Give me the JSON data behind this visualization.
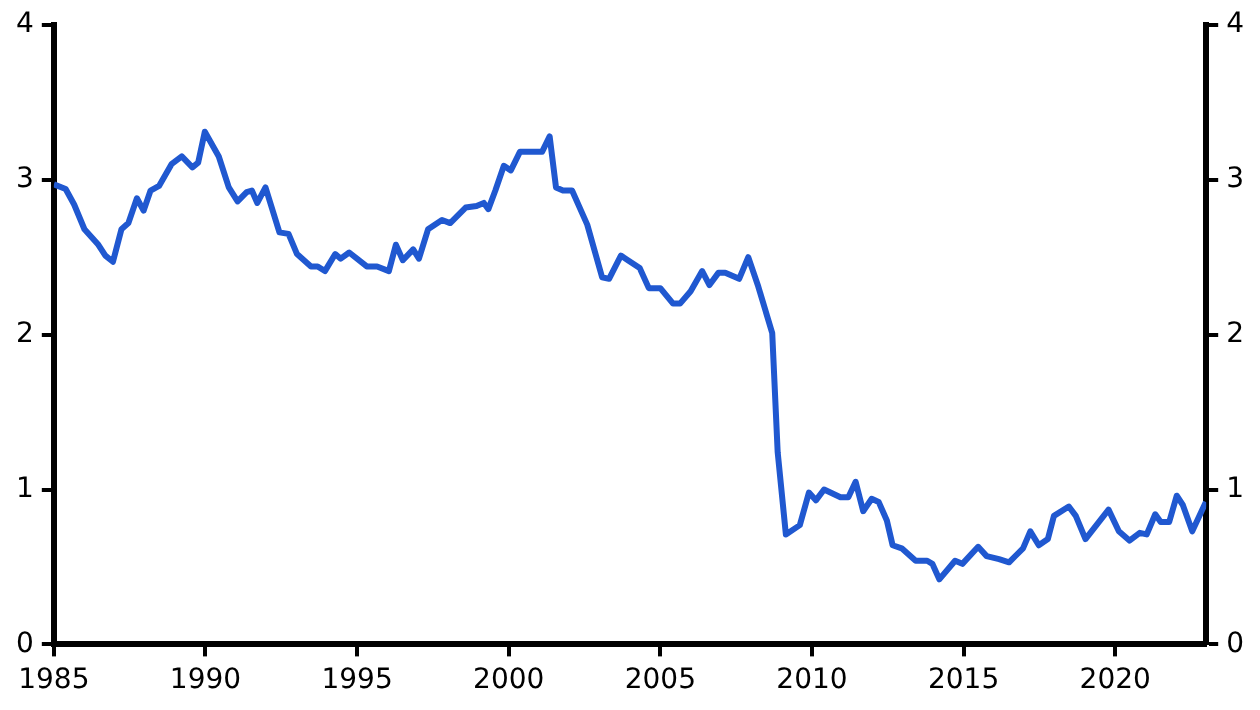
{
  "chart_data": {
    "type": "line",
    "x": [
      1985.0,
      1985.39,
      1985.67,
      1986.01,
      1986.47,
      1986.7,
      1986.95,
      1987.23,
      1987.46,
      1987.74,
      1987.96,
      1988.19,
      1988.47,
      1988.88,
      1989.22,
      1989.57,
      1989.76,
      1989.98,
      1990.44,
      1990.77,
      1991.06,
      1991.36,
      1991.53,
      1991.71,
      1991.98,
      1992.44,
      1992.74,
      1993.02,
      1993.48,
      1993.7,
      1993.94,
      1994.28,
      1994.46,
      1994.74,
      1995.32,
      1995.66,
      1996.05,
      1996.28,
      1996.51,
      1996.85,
      1997.04,
      1997.34,
      1997.8,
      1998.07,
      1998.58,
      1998.94,
      1999.18,
      1999.33,
      1999.56,
      1999.84,
      2000.07,
      2000.37,
      2000.83,
      2001.1,
      2001.35,
      2001.56,
      2001.79,
      2002.09,
      2002.59,
      2003.08,
      2003.31,
      2003.7,
      2003.93,
      2004.32,
      2004.62,
      2005.0,
      2005.42,
      2005.65,
      2006.0,
      2006.38,
      2006.62,
      2006.92,
      2007.14,
      2007.6,
      2007.9,
      2008.23,
      2008.69,
      2008.87,
      2009.14,
      2009.6,
      2009.9,
      2010.13,
      2010.4,
      2010.94,
      2011.2,
      2011.44,
      2011.69,
      2011.97,
      2012.2,
      2012.47,
      2012.66,
      2012.96,
      2013.42,
      2013.8,
      2013.97,
      2014.2,
      2014.72,
      2014.96,
      2015.48,
      2015.76,
      2016.17,
      2016.5,
      2016.96,
      2017.2,
      2017.48,
      2017.78,
      2017.98,
      2018.47,
      2018.7,
      2019.02,
      2019.78,
      2020.12,
      2020.47,
      2020.81,
      2021.04,
      2021.32,
      2021.5,
      2021.78,
      2022.03,
      2022.23,
      2022.54,
      2022.99
    ],
    "series": [
      {
        "color": "#2058d0",
        "values": [
          2.97,
          2.94,
          2.84,
          2.68,
          2.58,
          2.51,
          2.47,
          2.68,
          2.72,
          2.88,
          2.8,
          2.93,
          2.96,
          3.1,
          3.15,
          3.08,
          3.11,
          3.31,
          3.15,
          2.95,
          2.86,
          2.92,
          2.93,
          2.85,
          2.95,
          2.66,
          2.65,
          2.52,
          2.44,
          2.44,
          2.41,
          2.52,
          2.49,
          2.53,
          2.44,
          2.44,
          2.41,
          2.58,
          2.48,
          2.55,
          2.49,
          2.68,
          2.74,
          2.72,
          2.82,
          2.83,
          2.85,
          2.81,
          2.93,
          3.09,
          3.06,
          3.18,
          3.18,
          3.18,
          3.28,
          2.95,
          2.93,
          2.93,
          2.71,
          2.37,
          2.36,
          2.51,
          2.48,
          2.43,
          2.3,
          2.3,
          2.2,
          2.2,
          2.28,
          2.41,
          2.32,
          2.4,
          2.4,
          2.36,
          2.5,
          2.31,
          2.01,
          1.24,
          0.71,
          0.77,
          0.98,
          0.93,
          1.0,
          0.95,
          0.95,
          1.05,
          0.86,
          0.94,
          0.92,
          0.8,
          0.64,
          0.62,
          0.54,
          0.54,
          0.52,
          0.42,
          0.54,
          0.52,
          0.63,
          0.57,
          0.55,
          0.53,
          0.62,
          0.73,
          0.64,
          0.68,
          0.83,
          0.89,
          0.83,
          0.68,
          0.87,
          0.73,
          0.67,
          0.72,
          0.71,
          0.84,
          0.79,
          0.79,
          0.96,
          0.9,
          0.73,
          0.92
        ]
      }
    ],
    "xlim": [
      1985,
      2023
    ],
    "xticks": [
      1985,
      1990,
      1995,
      2000,
      2005,
      2010,
      2015,
      2020
    ],
    "ylim": [
      0,
      4
    ],
    "yticks": [
      0,
      1,
      2,
      3,
      4
    ],
    "y2lim": [
      0,
      4
    ],
    "y2ticks": [
      0,
      1,
      2,
      3,
      4
    ],
    "grid": false,
    "legend": false,
    "marker": "none",
    "line_style": "solid"
  }
}
